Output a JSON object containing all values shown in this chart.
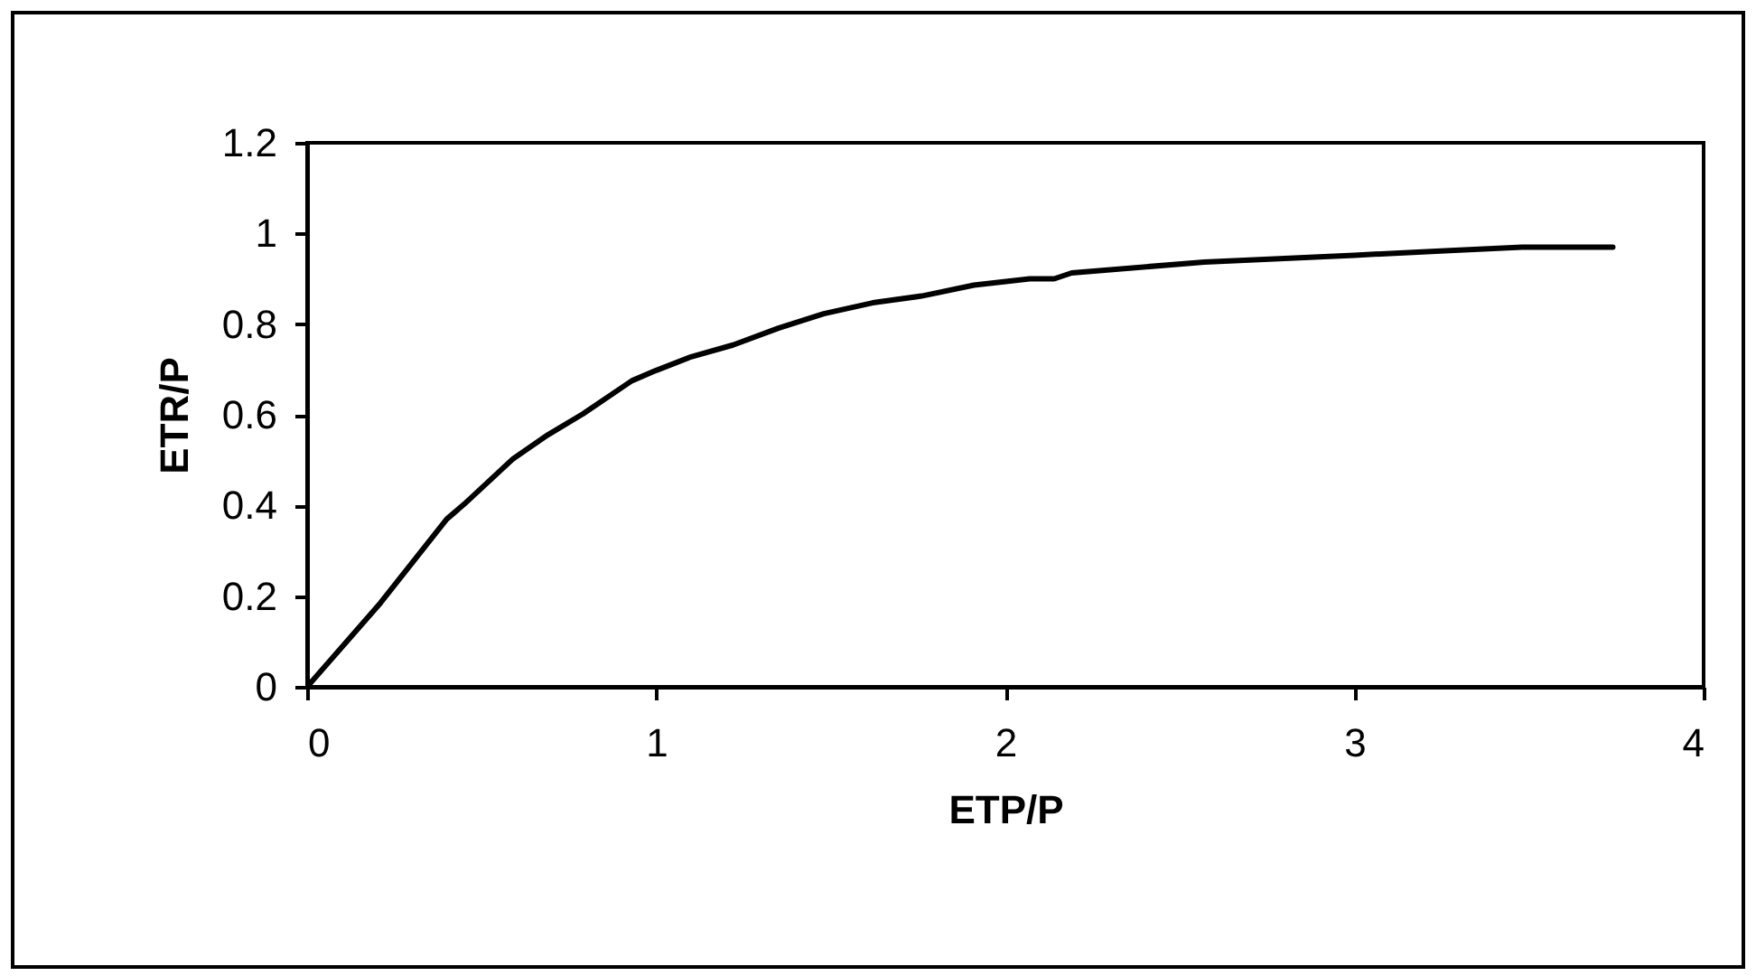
{
  "chart_data": {
    "type": "line",
    "xlabel": "ETP/P",
    "ylabel": "ETR/P",
    "xlim": [
      0,
      4
    ],
    "xticks": [
      0,
      1,
      2,
      3,
      4
    ],
    "ylim": [
      0,
      1.2
    ],
    "yticks": [
      0,
      0.2,
      0.4,
      0.6,
      0.8,
      1,
      1.2
    ],
    "grid": false,
    "marker": "none",
    "line_style": "solid",
    "series": [
      {
        "color": "#000000",
        "x": [
          0,
          0.21,
          0.4,
          0.45,
          0.59,
          0.69,
          0.79,
          0.93,
          1.0,
          1.1,
          1.22,
          1.35,
          1.48,
          1.62,
          1.76,
          1.91,
          2.07,
          2.14,
          2.19,
          2.57,
          3.0,
          3.26,
          3.48,
          3.74
        ],
        "values": [
          0,
          0.185,
          0.37,
          0.403,
          0.503,
          0.556,
          0.602,
          0.675,
          0.698,
          0.728,
          0.754,
          0.791,
          0.823,
          0.847,
          0.862,
          0.886,
          0.9,
          0.9,
          0.913,
          0.937,
          0.952,
          0.962,
          0.97,
          0.97
        ]
      }
    ]
  }
}
